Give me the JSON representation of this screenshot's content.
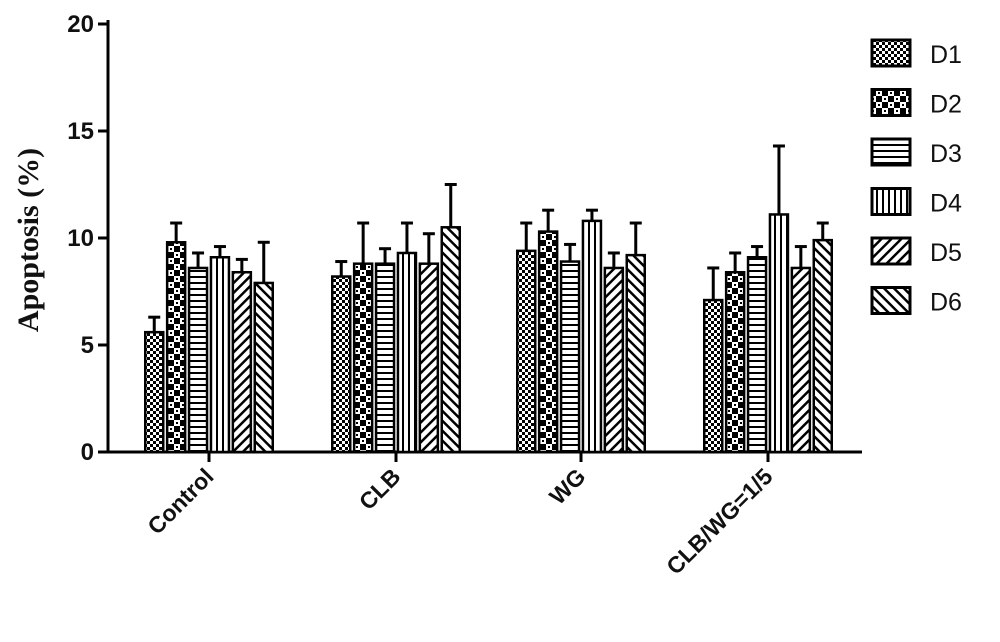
{
  "chart_data": {
    "type": "bar",
    "title": "",
    "xlabel": "",
    "ylabel": "Apoptosis (%)",
    "ylim": [
      0,
      20
    ],
    "yticks": [
      0,
      5,
      10,
      15,
      20
    ],
    "grid": false,
    "legend_position": "right",
    "categories": [
      "Control",
      "CLB",
      "WG",
      "CLB/WG=1/5"
    ],
    "series": [
      {
        "name": "D1",
        "pattern": "checker",
        "values": [
          5.6,
          8.2,
          9.4,
          7.1
        ],
        "errors": [
          0.7,
          0.7,
          1.3,
          1.5
        ]
      },
      {
        "name": "D2",
        "pattern": "large-checker",
        "values": [
          9.8,
          8.8,
          10.3,
          8.4
        ],
        "errors": [
          0.9,
          1.9,
          1.0,
          0.9
        ]
      },
      {
        "name": "D3",
        "pattern": "horizontal",
        "values": [
          8.6,
          8.8,
          8.9,
          9.1
        ],
        "errors": [
          0.7,
          0.7,
          0.8,
          0.5
        ]
      },
      {
        "name": "D4",
        "pattern": "vertical",
        "values": [
          9.1,
          9.3,
          10.8,
          11.1
        ],
        "errors": [
          0.5,
          1.4,
          0.5,
          3.2
        ]
      },
      {
        "name": "D5",
        "pattern": "diagonal-right",
        "values": [
          8.4,
          8.8,
          8.6,
          8.6
        ],
        "errors": [
          0.6,
          1.4,
          0.7,
          1.0
        ]
      },
      {
        "name": "D6",
        "pattern": "diagonal-left",
        "values": [
          7.9,
          10.5,
          9.2,
          9.9
        ],
        "errors": [
          1.9,
          2.0,
          1.5,
          0.8
        ]
      }
    ]
  }
}
